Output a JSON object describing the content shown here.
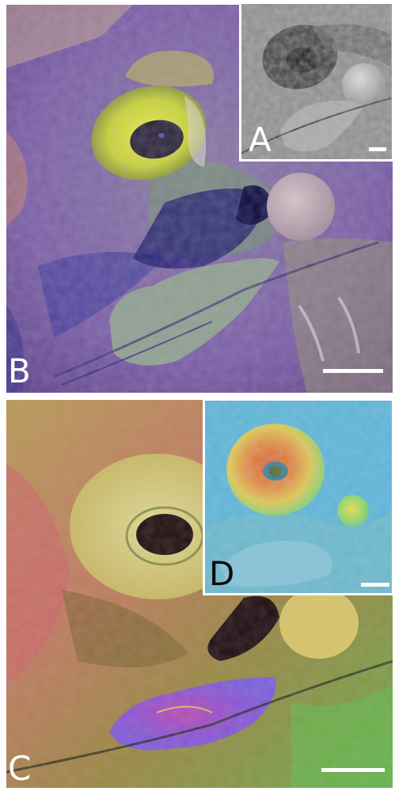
{
  "panels": {
    "a": {
      "label": "A"
    },
    "b": {
      "label": "B"
    },
    "c": {
      "label": "C"
    },
    "d": {
      "label": "D"
    }
  },
  "colors": {
    "background": "#ffffff",
    "scale_bar": "#ffffff",
    "label_light": "#ffffff",
    "label_dark": "#0b0b0b"
  }
}
